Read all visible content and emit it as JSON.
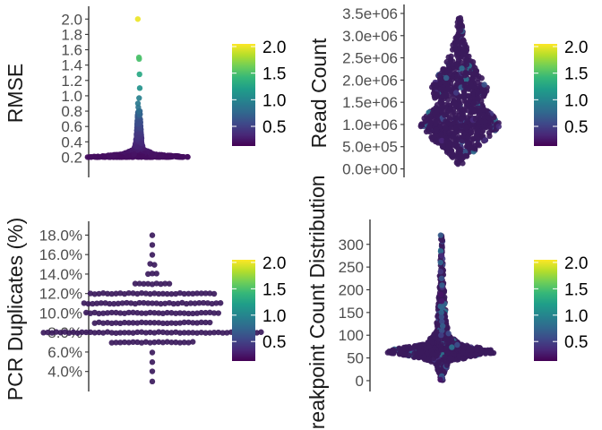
{
  "colors": {
    "viridis": [
      "#440154",
      "#482878",
      "#3e4989",
      "#31688e",
      "#26828e",
      "#1f9e89",
      "#35b779",
      "#6ece58",
      "#b5de2b",
      "#fde725"
    ],
    "bulk_point": "#3b1a5c"
  },
  "chart_data": [
    {
      "type": "scatter",
      "subtype": "beeswarm",
      "ylabel": "RMSE",
      "ylim": [
        0.1,
        2.05
      ],
      "yticks": [
        "0.2",
        "0.4",
        "0.6",
        "0.8",
        "1.0",
        "1.2",
        "1.4",
        "1.6",
        "1.8",
        "2.0"
      ],
      "tick_values": [
        0.2,
        0.4,
        0.6,
        0.8,
        1.0,
        1.2,
        1.4,
        1.6,
        1.8,
        2.0
      ],
      "color_by_value": true,
      "distribution": [
        [
          0.2,
          52
        ],
        [
          0.24,
          16
        ],
        [
          0.3,
          5
        ],
        [
          0.4,
          3
        ],
        [
          0.55,
          2
        ],
        [
          0.8,
          1
        ]
      ],
      "outliers": [
        0.75,
        0.8,
        0.85,
        0.9,
        0.97,
        1.1,
        1.28,
        1.48,
        1.5,
        2.0
      ],
      "colorbar": {
        "labels": [
          "2.0",
          "1.5",
          "1.0",
          "0.5"
        ],
        "values": [
          2.0,
          1.5,
          1.0,
          0.5
        ],
        "range": [
          0.13,
          2.05
        ]
      }
    },
    {
      "type": "scatter",
      "subtype": "beeswarm",
      "ylabel": "Read Count",
      "ylim": [
        -50000,
        3500000
      ],
      "yticks": [
        "0.0e+00",
        "5.0e+05",
        "1.0e+06",
        "1.5e+06",
        "2.0e+06",
        "2.5e+06",
        "3.0e+06",
        "3.5e+06"
      ],
      "tick_values": [
        0,
        500000,
        1000000,
        1500000,
        2000000,
        2500000,
        3000000,
        3500000
      ],
      "color_by_value": false,
      "distribution": [
        [
          100000,
          2
        ],
        [
          500000,
          14
        ],
        [
          800000,
          26
        ],
        [
          1000000,
          31
        ],
        [
          1200000,
          25
        ],
        [
          1500000,
          17
        ],
        [
          1800000,
          22
        ],
        [
          2000000,
          18
        ],
        [
          2300000,
          12
        ],
        [
          2600000,
          7
        ],
        [
          3000000,
          3
        ],
        [
          3400000,
          1
        ]
      ],
      "outliers": [],
      "colorbar": {
        "labels": [
          "2.0",
          "1.5",
          "1.0",
          "0.5"
        ],
        "values": [
          2.0,
          1.5,
          1.0,
          0.5
        ],
        "range": [
          0.13,
          2.05
        ]
      }
    },
    {
      "type": "scatter",
      "subtype": "beeswarm",
      "ylabel": "PCR Duplicates (%)",
      "ylim": [
        2.5,
        18.5
      ],
      "yticks": [
        "4.0%",
        "6.0%",
        "8.0%",
        "10.0%",
        "12.0%",
        "14.0%",
        "16.0%",
        "18.0%"
      ],
      "tick_values": [
        4,
        6,
        8,
        10,
        12,
        14,
        16,
        18
      ],
      "color_by_value": false,
      "rows": [
        [
          3,
          1
        ],
        [
          4,
          1
        ],
        [
          5,
          1
        ],
        [
          6,
          1
        ],
        [
          7,
          20
        ],
        [
          8,
          52
        ],
        [
          9,
          28
        ],
        [
          10,
          32
        ],
        [
          11,
          33
        ],
        [
          12,
          30
        ],
        [
          13,
          9
        ],
        [
          14,
          3
        ],
        [
          15,
          2
        ],
        [
          16,
          1
        ],
        [
          17,
          1
        ],
        [
          18,
          1
        ]
      ],
      "colorbar": {
        "labels": [
          "2.0",
          "1.5",
          "1.0",
          "0.5"
        ],
        "values": [
          2.0,
          1.5,
          1.0,
          0.5
        ],
        "range": [
          0.13,
          2.05
        ]
      }
    },
    {
      "type": "scatter",
      "subtype": "beeswarm",
      "ylabel": "Breakpoint Count Distribution",
      "ylim": [
        -10,
        335
      ],
      "yticks": [
        "0",
        "50",
        "100",
        "150",
        "200",
        "250",
        "300"
      ],
      "tick_values": [
        0,
        50,
        100,
        150,
        200,
        250,
        300
      ],
      "color_by_value": false,
      "distribution": [
        [
          0,
          1
        ],
        [
          20,
          2
        ],
        [
          40,
          5
        ],
        [
          55,
          22
        ],
        [
          62,
          36
        ],
        [
          70,
          30
        ],
        [
          80,
          12
        ],
        [
          100,
          5
        ],
        [
          130,
          3
        ],
        [
          180,
          2
        ],
        [
          250,
          1
        ],
        [
          320,
          0.5
        ]
      ],
      "outliers": [
        320,
        285,
        275,
        260,
        240,
        225,
        210,
        190,
        175,
        160,
        150,
        140,
        130,
        120,
        110,
        100,
        10,
        5,
        2
      ],
      "colorbar": {
        "labels": [
          "2.0",
          "1.5",
          "1.0",
          "0.5"
        ],
        "values": [
          2.0,
          1.5,
          1.0,
          0.5
        ],
        "range": [
          0.13,
          2.05
        ]
      }
    }
  ]
}
